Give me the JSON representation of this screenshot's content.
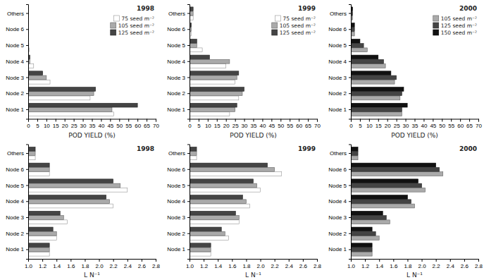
{
  "chart_data": [
    {
      "type": "bar",
      "orientation": "horizontal",
      "annotations": [
        "1998"
      ],
      "legend": "upper right",
      "categories": [
        "Node 1",
        "Node 2",
        "Node 3",
        "Node 4",
        "Node 5",
        "Node 6",
        "Others"
      ],
      "series": [
        {
          "name": "75 seed m⁻²",
          "color": "#ffffff",
          "values": [
            47,
            34,
            12,
            3,
            0.5,
            0,
            0
          ]
        },
        {
          "name": "105 seed m⁻²",
          "color": "#aaaaaa",
          "values": [
            46,
            36,
            10,
            1,
            0.3,
            0,
            0
          ]
        },
        {
          "name": "125 seed m⁻²",
          "color": "#444444",
          "values": [
            60,
            37,
            8,
            1,
            0.2,
            0,
            0
          ]
        }
      ],
      "xlabel": "POD YIELD (%)",
      "xlim": [
        0,
        70
      ],
      "xticks": [
        0,
        5,
        10,
        15,
        20,
        25,
        30,
        35,
        40,
        45,
        50,
        55,
        60,
        65,
        70
      ]
    },
    {
      "type": "bar",
      "orientation": "horizontal",
      "annotations": [
        "1999"
      ],
      "legend": "upper right",
      "categories": [
        "Node 1",
        "Node 2",
        "Node 3",
        "Node 4",
        "Node 5",
        "Node 6",
        "Others"
      ],
      "series": [
        {
          "name": "75 seed m⁻²",
          "color": "#ffffff",
          "values": [
            22,
            27,
            25,
            20,
            7,
            1,
            2
          ]
        },
        {
          "name": "105 seed m⁻²",
          "color": "#aaaaaa",
          "values": [
            25,
            29,
            26,
            22,
            4,
            1,
            2
          ]
        },
        {
          "name": "125 seed m⁻²",
          "color": "#444444",
          "values": [
            26,
            30,
            27,
            11,
            4,
            1,
            2
          ]
        }
      ],
      "xlabel": "POD YIELD (%)",
      "xlim": [
        0,
        70
      ],
      "xticks": [
        0,
        5,
        10,
        15,
        20,
        25,
        30,
        35,
        40,
        45,
        50,
        55,
        60,
        65,
        70
      ]
    },
    {
      "type": "bar",
      "orientation": "horizontal",
      "annotations": [
        "2000"
      ],
      "legend": "upper right",
      "categories": [
        "Node 1",
        "Node 2",
        "Node 3",
        "Node 4",
        "Node 5",
        "Node 6",
        "Others"
      ],
      "series": [
        {
          "name": "105 seed m⁻²",
          "color": "#aaaaaa",
          "values": [
            28,
            27,
            24,
            19,
            9,
            2,
            1
          ]
        },
        {
          "name": "125 seed m⁻²",
          "color": "#444444",
          "values": [
            28,
            28,
            25,
            18,
            7,
            2,
            1
          ]
        },
        {
          "name": "150 seed m⁻²",
          "color": "#111111",
          "values": [
            31,
            29,
            22,
            15,
            5,
            2,
            1
          ]
        }
      ],
      "xlabel": "POD YIELD (%)",
      "xlim": [
        0,
        70
      ],
      "xticks": [
        0,
        5,
        10,
        15,
        20,
        25,
        30,
        35,
        40,
        45,
        50,
        55,
        60,
        65,
        70
      ]
    },
    {
      "type": "bar",
      "orientation": "horizontal",
      "annotations": [
        "1998"
      ],
      "categories": [
        "Node 1",
        "Node 2",
        "Node 3",
        "Node 4",
        "Node 5",
        "Node 6",
        "Others"
      ],
      "series": [
        {
          "color": "#ffffff",
          "values": [
            1.3,
            1.4,
            1.55,
            2.2,
            2.4,
            1.3,
            1.1
          ]
        },
        {
          "color": "#aaaaaa",
          "values": [
            1.3,
            1.4,
            1.5,
            2.15,
            2.3,
            1.3,
            1.1
          ]
        },
        {
          "color": "#444444",
          "values": [
            1.3,
            1.35,
            1.45,
            2.1,
            2.2,
            1.3,
            1.1
          ]
        }
      ],
      "xlabel": "L N⁻¹",
      "xlim": [
        1.0,
        2.8
      ],
      "xticks": [
        {
          "value": 1.0,
          "label": "1.0"
        },
        1.2,
        1.4,
        1.6,
        1.8,
        {
          "value": 2.0,
          "label": "2.0"
        },
        2.2,
        2.4,
        2.6,
        2.8
      ]
    },
    {
      "type": "bar",
      "orientation": "horizontal",
      "annotations": [
        "1999"
      ],
      "categories": [
        "Node 1",
        "Node 2",
        "Node 3",
        "Node 4",
        "Node 5",
        "Node 6",
        "Others"
      ],
      "series": [
        {
          "color": "#ffffff",
          "values": [
            1.3,
            1.55,
            1.7,
            1.85,
            2.0,
            2.3,
            1.1
          ]
        },
        {
          "color": "#aaaaaa",
          "values": [
            1.3,
            1.5,
            1.7,
            1.8,
            1.95,
            2.2,
            1.1
          ]
        },
        {
          "color": "#444444",
          "values": [
            1.3,
            1.45,
            1.65,
            1.75,
            1.9,
            2.1,
            1.1
          ]
        }
      ],
      "xlabel": "L N⁻¹",
      "xlim": [
        1.0,
        2.8
      ],
      "xticks": [
        {
          "value": 1.0,
          "label": "1.0"
        },
        1.2,
        1.4,
        1.6,
        1.8,
        {
          "value": 2.0,
          "label": "2.0"
        },
        2.2,
        2.4,
        2.6,
        2.8
      ]
    },
    {
      "type": "bar",
      "orientation": "horizontal",
      "annotations": [
        "2000"
      ],
      "categories": [
        "Node 1",
        "Node 2",
        "Node 3",
        "Node 4",
        "Node 5",
        "Node 6",
        "Others"
      ],
      "series": [
        {
          "color": "#aaaaaa",
          "values": [
            1.3,
            1.4,
            1.55,
            1.9,
            2.05,
            2.3,
            1.1
          ]
        },
        {
          "color": "#444444",
          "values": [
            1.3,
            1.35,
            1.5,
            1.85,
            2.0,
            2.25,
            1.1
          ]
        },
        {
          "color": "#111111",
          "values": [
            1.3,
            1.3,
            1.45,
            1.8,
            1.95,
            2.2,
            1.1
          ]
        }
      ],
      "xlabel": "L N⁻¹",
      "xlim": [
        1.0,
        2.8
      ],
      "xticks": [
        {
          "value": 1.0,
          "label": "1.0"
        },
        1.2,
        1.4,
        1.6,
        1.8,
        {
          "value": 2.0,
          "label": "2.0"
        },
        2.2,
        2.4,
        2.6,
        2.8
      ]
    }
  ]
}
